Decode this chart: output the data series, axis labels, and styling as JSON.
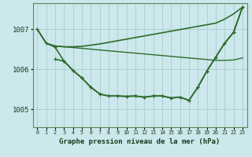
{
  "background_color": "#cce8ec",
  "grid_color": "#aacccc",
  "line_color": "#2d6b2d",
  "title": "Graphe pression niveau de la mer (hPa)",
  "xlim": [
    -0.5,
    23.5
  ],
  "ylim": [
    1004.55,
    1007.65
  ],
  "yticks": [
    1005,
    1006,
    1007
  ],
  "xticks": [
    0,
    1,
    2,
    3,
    4,
    5,
    6,
    7,
    8,
    9,
    10,
    11,
    12,
    13,
    14,
    15,
    16,
    17,
    18,
    19,
    20,
    21,
    22,
    23
  ],
  "series": [
    {
      "x": [
        0,
        1,
        2,
        3,
        4,
        5,
        6,
        7,
        8,
        9,
        10,
        11,
        12,
        13,
        14,
        15,
        16,
        17,
        18,
        19,
        20,
        21,
        22,
        23
      ],
      "y": [
        1007.0,
        1006.65,
        1006.58,
        1006.56,
        1006.56,
        1006.57,
        1006.6,
        1006.63,
        1006.67,
        1006.71,
        1006.75,
        1006.79,
        1006.83,
        1006.87,
        1006.91,
        1006.95,
        1006.99,
        1007.03,
        1007.07,
        1007.11,
        1007.15,
        1007.25,
        1007.38,
        1007.55
      ],
      "marker": false,
      "linewidth": 1.2
    },
    {
      "x": [
        2,
        3,
        4,
        5,
        6,
        7,
        8,
        9,
        10,
        11,
        12,
        13,
        14,
        15,
        16,
        17,
        18,
        19,
        20,
        21,
        22,
        23
      ],
      "y": [
        1006.58,
        1006.56,
        1006.54,
        1006.52,
        1006.5,
        1006.48,
        1006.46,
        1006.44,
        1006.42,
        1006.4,
        1006.38,
        1006.36,
        1006.34,
        1006.32,
        1006.3,
        1006.28,
        1006.26,
        1006.24,
        1006.22,
        1006.22,
        1006.23,
        1006.28
      ],
      "marker": false,
      "linewidth": 1.0
    },
    {
      "x": [
        2,
        3,
        4,
        5,
        6,
        7,
        8,
        9,
        10,
        11,
        12,
        13,
        14,
        15,
        16,
        17,
        18,
        19,
        20,
        21,
        22,
        23
      ],
      "y": [
        1006.25,
        1006.2,
        1005.97,
        1005.78,
        1005.55,
        1005.38,
        1005.33,
        1005.33,
        1005.32,
        1005.33,
        1005.3,
        1005.33,
        1005.33,
        1005.28,
        1005.3,
        1005.22,
        1005.55,
        1005.95,
        1006.3,
        1006.65,
        1006.92,
        1007.55
      ],
      "marker": true,
      "linewidth": 1.2
    },
    {
      "x": [
        0,
        1,
        2,
        3,
        4,
        5,
        6,
        7,
        8,
        9,
        10,
        11,
        12,
        13,
        14,
        15,
        16,
        17,
        18,
        19,
        20,
        21,
        22,
        23
      ],
      "y": [
        1007.0,
        1006.65,
        1006.55,
        1006.2,
        1005.97,
        1005.78,
        1005.55,
        1005.38,
        1005.33,
        1005.33,
        1005.32,
        1005.33,
        1005.3,
        1005.33,
        1005.33,
        1005.28,
        1005.3,
        1005.22,
        1005.55,
        1005.95,
        1006.3,
        1006.65,
        1006.92,
        1007.55
      ],
      "marker": true,
      "linewidth": 1.2
    }
  ]
}
